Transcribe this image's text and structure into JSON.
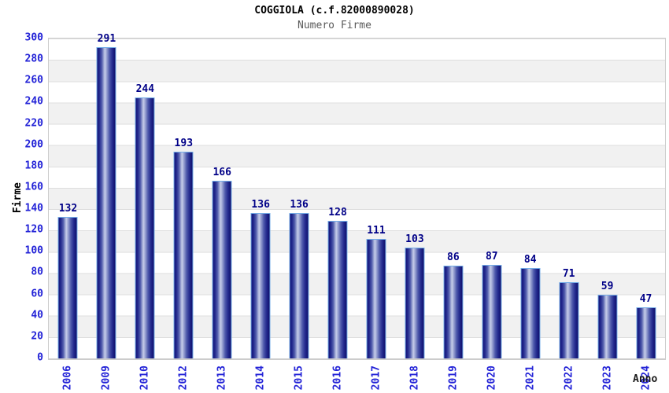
{
  "page": {
    "background": "#ffffff"
  },
  "chart_data": {
    "type": "bar",
    "title": "COGGIOLA (c.f.82000890028)",
    "subtitle": "Numero Firme",
    "xlabel": "Anno",
    "ylabel": "Firme",
    "categories": [
      "2006",
      "2009",
      "2010",
      "2012",
      "2013",
      "2014",
      "2015",
      "2016",
      "2017",
      "2018",
      "2019",
      "2020",
      "2021",
      "2022",
      "2023",
      "2024"
    ],
    "values": [
      132,
      291,
      244,
      193,
      166,
      136,
      136,
      128,
      111,
      103,
      86,
      87,
      84,
      71,
      59,
      47
    ],
    "ylim": [
      0,
      300
    ],
    "yticks": [
      0,
      20,
      40,
      60,
      80,
      100,
      120,
      140,
      160,
      180,
      200,
      220,
      240,
      260,
      280,
      300
    ],
    "grid": "horizontal-bands-every-20",
    "legend": "none",
    "colors": {
      "bar_edge_dark": "#131378",
      "bar_highlight": "#c6cce9",
      "bar_border": "#74ade8",
      "value_label": "#000087",
      "tick_label": "#2323d7",
      "band": "#f1f1f1",
      "gridline": "#dedede",
      "plot_border": "#cccccc",
      "title": "#000000",
      "subtitle": "#5a5a5a"
    }
  }
}
